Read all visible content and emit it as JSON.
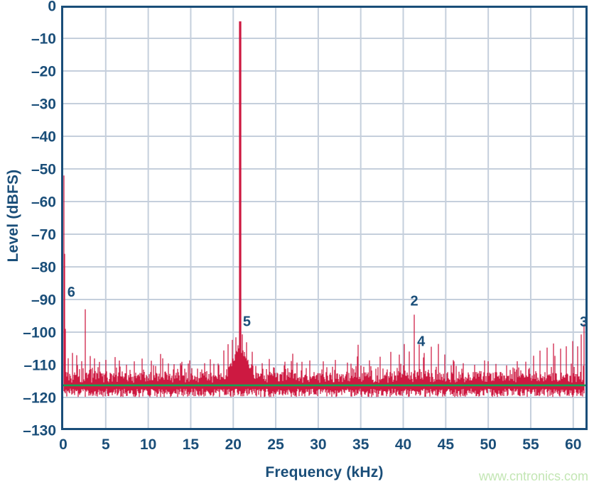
{
  "watermark": {
    "text": "www.cntronics.com",
    "color": "#C3E6B4"
  },
  "chart_data": {
    "type": "line",
    "subtype": "fft-spectrum",
    "title": "",
    "xlabel": "Frequency (kHz)",
    "ylabel": "Level (dBFS)",
    "xlim": [
      0,
      61.44
    ],
    "ylim": [
      -130,
      0
    ],
    "grid": true,
    "legend": "none",
    "x_ticks": [
      0,
      5,
      10,
      15,
      20,
      25,
      30,
      35,
      40,
      45,
      50,
      55,
      60
    ],
    "x_tick_labels": [
      "0",
      "5",
      "10",
      "15",
      "20",
      "25",
      "30",
      "35",
      "40",
      "45",
      "50",
      "55",
      "60"
    ],
    "y_ticks": [
      0,
      -10,
      -20,
      -30,
      -40,
      -50,
      -60,
      -70,
      -80,
      -90,
      -100,
      -110,
      -120,
      -130
    ],
    "y_tick_labels": [
      "0",
      "–10",
      "–20",
      "–30",
      "–40",
      "–50",
      "–60",
      "–70",
      "–80",
      "–90",
      "–100",
      "–110",
      "–120",
      "–130"
    ],
    "colors": {
      "trace": "#CD1941",
      "grid": "#C5CFDC",
      "axis": "#1A4E79",
      "noise_marker": "#12A452",
      "background": "#FFFFFF"
    },
    "fundamental": {
      "freq_khz": 20.8,
      "level_dbfs": -4.8
    },
    "dc_spike": {
      "freq_khz": 0.1,
      "level_dbfs": -52
    },
    "noise_floor_dbfs": -116.3,
    "noise_marker_line": {
      "level_dbfs": -116.3
    },
    "noise_band": {
      "top_dbfs": -112.5,
      "bottom_dbfs": -119.8
    },
    "skirt": {
      "center_khz": 20.8,
      "sigma_khz": 1.0,
      "amp_db": 10.3
    },
    "harmonic_labels": [
      {
        "label": "6",
        "freq_khz": 0.95,
        "level_dbfs": -87.6
      },
      {
        "label": "5",
        "freq_khz": 21.6,
        "level_dbfs": -96.6
      },
      {
        "label": "2",
        "freq_khz": 41.3,
        "level_dbfs": -90.3
      },
      {
        "label": "4",
        "freq_khz": 42.1,
        "level_dbfs": -102.7
      },
      {
        "label": "3",
        "freq_khz": 61.25,
        "level_dbfs": -96.7
      }
    ],
    "spurs": [
      [
        0.55,
        -108
      ],
      [
        1.1,
        -106.5
      ],
      [
        1.6,
        -107
      ],
      [
        2.2,
        -109
      ],
      [
        2.6,
        -93
      ],
      [
        3.2,
        -107.5
      ],
      [
        3.7,
        -108.2
      ],
      [
        4.3,
        -109
      ],
      [
        5.0,
        -108.5
      ],
      [
        6.1,
        -107.6
      ],
      [
        6.6,
        -108.5
      ],
      [
        7.4,
        -110
      ],
      [
        8.4,
        -109
      ],
      [
        9.3,
        -108.2
      ],
      [
        10.4,
        -108.8
      ],
      [
        11.7,
        -108.2
      ],
      [
        12.4,
        -109.5
      ],
      [
        13.0,
        -110
      ],
      [
        14.0,
        -109
      ],
      [
        14.9,
        -108.5
      ],
      [
        15.8,
        -111
      ],
      [
        16.6,
        -109.5
      ],
      [
        17.3,
        -108.5
      ],
      [
        18.9,
        -105.5
      ],
      [
        19.4,
        -103.8
      ],
      [
        19.9,
        -102.3
      ],
      [
        20.3,
        -101.5
      ],
      [
        21.1,
        -100.6
      ],
      [
        21.6,
        -103.2
      ],
      [
        22.2,
        -106
      ],
      [
        23.4,
        -109.5
      ],
      [
        24.8,
        -111
      ],
      [
        26.0,
        -110
      ],
      [
        27.5,
        -109.5
      ],
      [
        29.0,
        -108.5
      ],
      [
        30.6,
        -109
      ],
      [
        32.0,
        -108.5
      ],
      [
        33.4,
        -109.5
      ],
      [
        34.7,
        -103.8
      ],
      [
        36.0,
        -108.5
      ],
      [
        37.3,
        -107.5
      ],
      [
        38.5,
        -106.2
      ],
      [
        39.5,
        -106.8
      ],
      [
        40.1,
        -103.8
      ],
      [
        40.7,
        -105.8
      ],
      [
        41.3,
        -94.6
      ],
      [
        41.9,
        -103.6
      ],
      [
        42.5,
        -106.2
      ],
      [
        43.3,
        -104.6
      ],
      [
        44.1,
        -103.6
      ],
      [
        44.9,
        -107
      ],
      [
        45.9,
        -108.6
      ],
      [
        47.1,
        -109.4
      ],
      [
        48.4,
        -110
      ],
      [
        49.6,
        -108.6
      ],
      [
        50.9,
        -109.6
      ],
      [
        52.2,
        -110.2
      ],
      [
        53.4,
        -108.8
      ],
      [
        54.4,
        -109
      ],
      [
        55.3,
        -107.2
      ],
      [
        56.1,
        -105.6
      ],
      [
        56.9,
        -104.6
      ],
      [
        57.7,
        -103.6
      ],
      [
        58.5,
        -105.2
      ],
      [
        59.2,
        -104.2
      ],
      [
        59.9,
        -102.9
      ],
      [
        60.5,
        -104.2
      ],
      [
        60.95,
        -100.8
      ],
      [
        61.3,
        -97.5
      ]
    ],
    "noise_seed": 20
  }
}
